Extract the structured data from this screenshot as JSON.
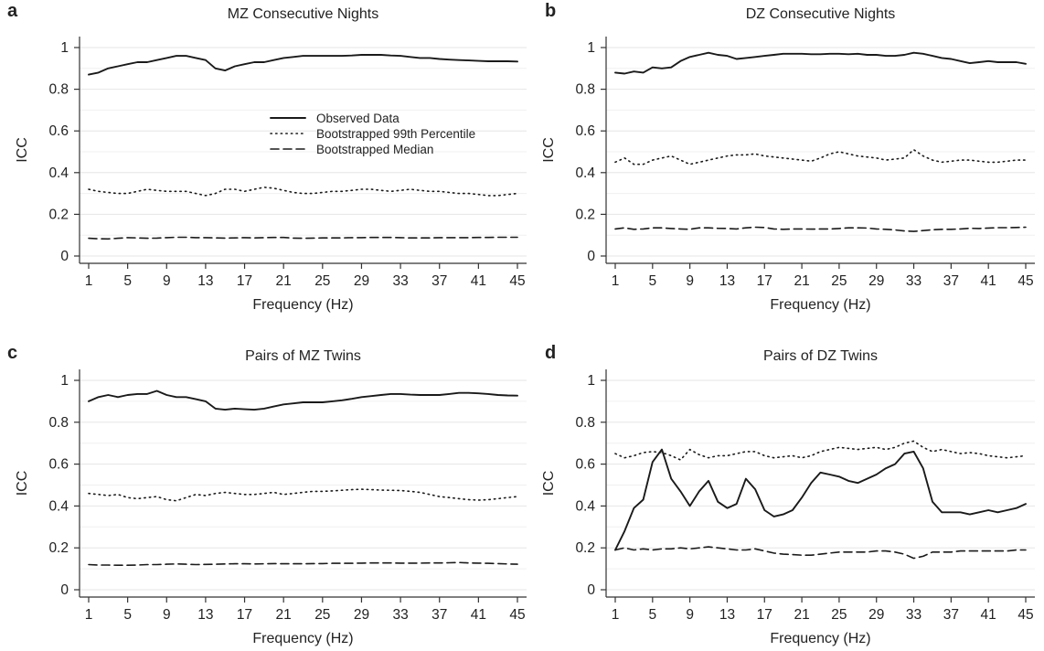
{
  "figure": {
    "panels": [
      {
        "letter": "a",
        "title": "MZ Consecutive Nights"
      },
      {
        "letter": "b",
        "title": "DZ Consecutive Nights"
      },
      {
        "letter": "c",
        "title": "Pairs of MZ Twins"
      },
      {
        "letter": "d",
        "title": "Pairs of DZ Twins"
      }
    ],
    "legend": {
      "entries": [
        {
          "label": "Observed Data",
          "style": "solid"
        },
        {
          "label": "Bootstrapped 99th Percentile",
          "style": "dotted"
        },
        {
          "label": "Bootstrapped Median",
          "style": "dashed"
        }
      ]
    },
    "line_color": "#1a1a1a",
    "grid_color": "#e6e6e6"
  },
  "chart_data": [
    {
      "type": "line",
      "title": "MZ Consecutive Nights",
      "xlabel": "Frequency (Hz)",
      "ylabel": "ICC",
      "x": [
        1,
        2,
        3,
        4,
        5,
        6,
        7,
        8,
        9,
        10,
        11,
        12,
        13,
        14,
        15,
        16,
        17,
        18,
        19,
        20,
        21,
        22,
        23,
        24,
        25,
        26,
        27,
        28,
        29,
        30,
        31,
        32,
        33,
        34,
        35,
        36,
        37,
        38,
        39,
        40,
        41,
        42,
        43,
        44,
        45
      ],
      "xticks": [
        1,
        5,
        9,
        13,
        17,
        21,
        25,
        29,
        33,
        37,
        41,
        45
      ],
      "yticks": [
        0,
        0.2,
        0.4,
        0.6,
        0.8,
        1
      ],
      "ytick_labels": [
        "0",
        "0.2",
        "0.4",
        "0.6",
        "0.8",
        "1"
      ],
      "xlim": [
        1,
        45
      ],
      "ylim": [
        0,
        1
      ],
      "grid": true,
      "legend_position": "upper-right",
      "series": [
        {
          "name": "Observed Data",
          "style": "solid",
          "values": [
            0.87,
            0.88,
            0.9,
            0.91,
            0.92,
            0.93,
            0.93,
            0.94,
            0.95,
            0.96,
            0.96,
            0.95,
            0.94,
            0.9,
            0.89,
            0.91,
            0.92,
            0.93,
            0.93,
            0.94,
            0.95,
            0.955,
            0.96,
            0.96,
            0.96,
            0.96,
            0.96,
            0.962,
            0.965,
            0.965,
            0.965,
            0.962,
            0.96,
            0.955,
            0.95,
            0.95,
            0.945,
            0.942,
            0.94,
            0.938,
            0.936,
            0.934,
            0.934,
            0.934,
            0.933
          ]
        },
        {
          "name": "Bootstrapped 99th Percentile",
          "style": "dotted",
          "values": [
            0.32,
            0.31,
            0.305,
            0.3,
            0.3,
            0.31,
            0.32,
            0.315,
            0.31,
            0.31,
            0.31,
            0.3,
            0.29,
            0.3,
            0.32,
            0.32,
            0.31,
            0.32,
            0.33,
            0.325,
            0.315,
            0.305,
            0.3,
            0.3,
            0.305,
            0.31,
            0.31,
            0.315,
            0.32,
            0.32,
            0.315,
            0.31,
            0.315,
            0.32,
            0.315,
            0.31,
            0.31,
            0.305,
            0.3,
            0.3,
            0.295,
            0.29,
            0.29,
            0.295,
            0.3
          ]
        },
        {
          "name": "Bootstrapped Median",
          "style": "dashed",
          "values": [
            0.085,
            0.083,
            0.082,
            0.085,
            0.088,
            0.087,
            0.085,
            0.086,
            0.088,
            0.09,
            0.09,
            0.088,
            0.088,
            0.087,
            0.086,
            0.087,
            0.088,
            0.087,
            0.088,
            0.089,
            0.089,
            0.086,
            0.085,
            0.086,
            0.087,
            0.087,
            0.087,
            0.088,
            0.088,
            0.089,
            0.089,
            0.089,
            0.088,
            0.087,
            0.087,
            0.087,
            0.088,
            0.088,
            0.088,
            0.088,
            0.089,
            0.089,
            0.09,
            0.09,
            0.09
          ]
        }
      ]
    },
    {
      "type": "line",
      "title": "DZ Consecutive Nights",
      "xlabel": "Frequency (Hz)",
      "ylabel": "ICC",
      "x": [
        1,
        2,
        3,
        4,
        5,
        6,
        7,
        8,
        9,
        10,
        11,
        12,
        13,
        14,
        15,
        16,
        17,
        18,
        19,
        20,
        21,
        22,
        23,
        24,
        25,
        26,
        27,
        28,
        29,
        30,
        31,
        32,
        33,
        34,
        35,
        36,
        37,
        38,
        39,
        40,
        41,
        42,
        43,
        44,
        45
      ],
      "xticks": [
        1,
        5,
        9,
        13,
        17,
        21,
        25,
        29,
        33,
        37,
        41,
        45
      ],
      "yticks": [
        0,
        0.2,
        0.4,
        0.6,
        0.8,
        1
      ],
      "ytick_labels": [
        "0",
        "0.2",
        "0.4",
        "0.6",
        "0.8",
        "1"
      ],
      "xlim": [
        1,
        45
      ],
      "ylim": [
        0,
        1
      ],
      "grid": true,
      "series": [
        {
          "name": "Observed Data",
          "style": "solid",
          "values": [
            0.88,
            0.875,
            0.885,
            0.88,
            0.905,
            0.9,
            0.905,
            0.935,
            0.955,
            0.965,
            0.975,
            0.965,
            0.96,
            0.945,
            0.95,
            0.955,
            0.96,
            0.965,
            0.97,
            0.97,
            0.97,
            0.968,
            0.968,
            0.97,
            0.97,
            0.968,
            0.97,
            0.965,
            0.965,
            0.96,
            0.96,
            0.965,
            0.975,
            0.97,
            0.96,
            0.95,
            0.945,
            0.935,
            0.925,
            0.93,
            0.935,
            0.93,
            0.93,
            0.93,
            0.922
          ]
        },
        {
          "name": "Bootstrapped 99th Percentile",
          "style": "dotted",
          "values": [
            0.45,
            0.47,
            0.44,
            0.44,
            0.46,
            0.47,
            0.48,
            0.46,
            0.44,
            0.45,
            0.46,
            0.47,
            0.48,
            0.485,
            0.485,
            0.49,
            0.48,
            0.475,
            0.47,
            0.465,
            0.46,
            0.455,
            0.47,
            0.49,
            0.5,
            0.49,
            0.48,
            0.475,
            0.47,
            0.46,
            0.465,
            0.47,
            0.51,
            0.48,
            0.46,
            0.45,
            0.455,
            0.46,
            0.46,
            0.455,
            0.45,
            0.45,
            0.455,
            0.46,
            0.46
          ]
        },
        {
          "name": "Bootstrapped Median",
          "style": "dashed",
          "values": [
            0.13,
            0.135,
            0.128,
            0.13,
            0.135,
            0.135,
            0.132,
            0.13,
            0.128,
            0.135,
            0.135,
            0.133,
            0.132,
            0.13,
            0.135,
            0.138,
            0.137,
            0.13,
            0.128,
            0.13,
            0.13,
            0.129,
            0.13,
            0.13,
            0.132,
            0.135,
            0.135,
            0.134,
            0.13,
            0.128,
            0.125,
            0.12,
            0.118,
            0.122,
            0.126,
            0.128,
            0.128,
            0.13,
            0.133,
            0.132,
            0.134,
            0.136,
            0.136,
            0.137,
            0.138
          ]
        }
      ]
    },
    {
      "type": "line",
      "title": "Pairs of MZ Twins",
      "xlabel": "Frequency (Hz)",
      "ylabel": "ICC",
      "x": [
        1,
        2,
        3,
        4,
        5,
        6,
        7,
        8,
        9,
        10,
        11,
        12,
        13,
        14,
        15,
        16,
        17,
        18,
        19,
        20,
        21,
        22,
        23,
        24,
        25,
        26,
        27,
        28,
        29,
        30,
        31,
        32,
        33,
        34,
        35,
        36,
        37,
        38,
        39,
        40,
        41,
        42,
        43,
        44,
        45
      ],
      "xticks": [
        1,
        5,
        9,
        13,
        17,
        21,
        25,
        29,
        33,
        37,
        41,
        45
      ],
      "yticks": [
        0,
        0.2,
        0.4,
        0.6,
        0.8,
        1
      ],
      "ytick_labels": [
        "0",
        "0.2",
        "0.4",
        "0.6",
        "0.8",
        "1"
      ],
      "xlim": [
        1,
        45
      ],
      "ylim": [
        0,
        1
      ],
      "grid": true,
      "series": [
        {
          "name": "Observed Data",
          "style": "solid",
          "values": [
            0.9,
            0.92,
            0.93,
            0.92,
            0.93,
            0.935,
            0.935,
            0.95,
            0.93,
            0.92,
            0.92,
            0.91,
            0.9,
            0.865,
            0.86,
            0.865,
            0.862,
            0.86,
            0.865,
            0.875,
            0.885,
            0.89,
            0.895,
            0.895,
            0.895,
            0.9,
            0.905,
            0.912,
            0.92,
            0.925,
            0.93,
            0.935,
            0.935,
            0.932,
            0.93,
            0.93,
            0.93,
            0.935,
            0.94,
            0.94,
            0.938,
            0.935,
            0.93,
            0.928,
            0.927
          ]
        },
        {
          "name": "Bootstrapped 99th Percentile",
          "style": "dotted",
          "values": [
            0.46,
            0.455,
            0.45,
            0.455,
            0.44,
            0.435,
            0.44,
            0.445,
            0.43,
            0.425,
            0.44,
            0.455,
            0.45,
            0.46,
            0.465,
            0.46,
            0.455,
            0.455,
            0.46,
            0.465,
            0.455,
            0.46,
            0.465,
            0.47,
            0.47,
            0.472,
            0.475,
            0.478,
            0.48,
            0.478,
            0.476,
            0.475,
            0.474,
            0.47,
            0.465,
            0.455,
            0.445,
            0.44,
            0.435,
            0.43,
            0.428,
            0.43,
            0.435,
            0.44,
            0.445
          ]
        },
        {
          "name": "Bootstrapped Median",
          "style": "dashed",
          "values": [
            0.12,
            0.118,
            0.118,
            0.117,
            0.117,
            0.118,
            0.12,
            0.12,
            0.122,
            0.123,
            0.122,
            0.12,
            0.121,
            0.122,
            0.123,
            0.124,
            0.124,
            0.123,
            0.124,
            0.125,
            0.124,
            0.124,
            0.124,
            0.125,
            0.125,
            0.126,
            0.126,
            0.126,
            0.127,
            0.128,
            0.128,
            0.128,
            0.127,
            0.127,
            0.127,
            0.128,
            0.128,
            0.129,
            0.13,
            0.128,
            0.127,
            0.126,
            0.125,
            0.123,
            0.122
          ]
        }
      ]
    },
    {
      "type": "line",
      "title": "Pairs of DZ Twins",
      "xlabel": "Frequency (Hz)",
      "ylabel": "ICC",
      "x": [
        1,
        2,
        3,
        4,
        5,
        6,
        7,
        8,
        9,
        10,
        11,
        12,
        13,
        14,
        15,
        16,
        17,
        18,
        19,
        20,
        21,
        22,
        23,
        24,
        25,
        26,
        27,
        28,
        29,
        30,
        31,
        32,
        33,
        34,
        35,
        36,
        37,
        38,
        39,
        40,
        41,
        42,
        43,
        44,
        45
      ],
      "xticks": [
        1,
        5,
        9,
        13,
        17,
        21,
        25,
        29,
        33,
        37,
        41,
        45
      ],
      "yticks": [
        0,
        0.2,
        0.4,
        0.6,
        0.8,
        1
      ],
      "ytick_labels": [
        "0",
        "0.2",
        "0.4",
        "0.6",
        "0.8",
        "1"
      ],
      "xlim": [
        1,
        45
      ],
      "ylim": [
        0,
        1
      ],
      "grid": true,
      "series": [
        {
          "name": "Observed Data",
          "style": "solid",
          "values": [
            0.19,
            0.28,
            0.39,
            0.43,
            0.61,
            0.67,
            0.53,
            0.47,
            0.4,
            0.47,
            0.52,
            0.42,
            0.39,
            0.41,
            0.53,
            0.48,
            0.38,
            0.35,
            0.36,
            0.38,
            0.44,
            0.51,
            0.56,
            0.55,
            0.54,
            0.52,
            0.51,
            0.53,
            0.55,
            0.58,
            0.6,
            0.65,
            0.66,
            0.58,
            0.42,
            0.37,
            0.37,
            0.37,
            0.36,
            0.37,
            0.38,
            0.37,
            0.38,
            0.39,
            0.41
          ]
        },
        {
          "name": "Bootstrapped 99th Percentile",
          "style": "dotted",
          "values": [
            0.65,
            0.63,
            0.64,
            0.655,
            0.66,
            0.655,
            0.64,
            0.62,
            0.67,
            0.645,
            0.63,
            0.64,
            0.64,
            0.65,
            0.66,
            0.66,
            0.64,
            0.63,
            0.635,
            0.64,
            0.63,
            0.64,
            0.66,
            0.67,
            0.68,
            0.675,
            0.67,
            0.675,
            0.68,
            0.67,
            0.68,
            0.7,
            0.71,
            0.68,
            0.66,
            0.67,
            0.66,
            0.65,
            0.655,
            0.65,
            0.64,
            0.635,
            0.63,
            0.635,
            0.64
          ]
        },
        {
          "name": "Bootstrapped Median",
          "style": "dashed",
          "values": [
            0.19,
            0.2,
            0.19,
            0.195,
            0.19,
            0.195,
            0.195,
            0.2,
            0.195,
            0.2,
            0.205,
            0.2,
            0.195,
            0.19,
            0.19,
            0.195,
            0.185,
            0.175,
            0.17,
            0.168,
            0.165,
            0.165,
            0.17,
            0.175,
            0.18,
            0.18,
            0.18,
            0.18,
            0.185,
            0.185,
            0.18,
            0.17,
            0.15,
            0.16,
            0.18,
            0.18,
            0.18,
            0.185,
            0.185,
            0.185,
            0.185,
            0.185,
            0.185,
            0.19,
            0.19
          ]
        }
      ]
    }
  ]
}
